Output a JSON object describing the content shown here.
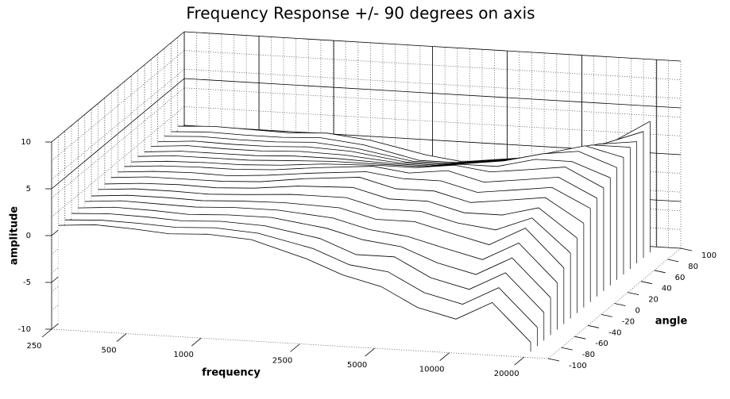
{
  "chart_data": {
    "type": "waterfall",
    "title": "Frequency Response +/- 90 degrees on axis",
    "x_label": "frequency",
    "y_label": "amplitude",
    "z_label": "angle",
    "x": [
      250,
      350,
      500,
      700,
      1000,
      1500,
      2500,
      3500,
      5000,
      7000,
      10000,
      14000,
      20000
    ],
    "angles": [
      -90,
      -80,
      -70,
      -60,
      -50,
      -40,
      -30,
      -20,
      -10,
      0,
      10,
      20,
      30,
      40,
      50,
      60,
      70,
      80,
      90
    ],
    "series": [
      {
        "values": [
          0.5,
          0.8,
          0.6,
          0.3,
          0.5,
          0.2,
          -1.5,
          -3,
          -4,
          -6,
          -7,
          -5,
          -9
        ]
      },
      {
        "values": [
          0.5,
          0.7,
          0.6,
          0.4,
          0.6,
          0.3,
          -1,
          -2.5,
          -3,
          -5,
          -6,
          -4,
          -8
        ]
      },
      {
        "values": [
          0.6,
          0.8,
          0.7,
          0.5,
          0.7,
          0.5,
          -0.5,
          -2,
          -2,
          -4,
          -5,
          -3,
          -7
        ]
      },
      {
        "values": [
          0.6,
          0.9,
          0.8,
          0.6,
          0.8,
          0.8,
          0,
          -1,
          -1.5,
          -3,
          -4,
          -2,
          -6
        ]
      },
      {
        "values": [
          0.7,
          1,
          0.9,
          0.8,
          1,
          1,
          0.5,
          -0.5,
          -1,
          -2,
          -3,
          -1,
          -5
        ]
      },
      {
        "values": [
          0.7,
          1,
          1,
          0.9,
          1.1,
          1.2,
          1,
          0,
          0,
          -1,
          -2,
          0,
          -4
        ]
      },
      {
        "values": [
          0.8,
          1.1,
          1.1,
          1,
          1.2,
          1.5,
          1.5,
          0.5,
          0.5,
          -0.5,
          -1,
          0.5,
          -3
        ]
      },
      {
        "values": [
          0.8,
          1.1,
          1.2,
          1.1,
          1.3,
          1.8,
          2,
          1,
          1,
          0,
          0,
          1,
          -2
        ]
      },
      {
        "values": [
          0.9,
          1.2,
          1.2,
          1.2,
          1.4,
          2,
          2.5,
          1.5,
          1.5,
          0.5,
          1,
          1.5,
          -1
        ]
      },
      {
        "values": [
          0.9,
          1.2,
          1.3,
          1.2,
          1.5,
          2,
          2.5,
          2,
          2,
          1,
          1.5,
          2,
          0
        ]
      },
      {
        "values": [
          0.9,
          1.2,
          1.3,
          1.3,
          1.5,
          2,
          2.5,
          2,
          2.5,
          1.5,
          2,
          2.5,
          0.5
        ]
      },
      {
        "values": [
          0.8,
          1.1,
          1.2,
          1.2,
          1.4,
          1.8,
          2,
          2,
          2.5,
          2,
          2.5,
          3,
          1
        ]
      },
      {
        "values": [
          0.8,
          1.1,
          1.1,
          1.1,
          1.3,
          1.5,
          1.5,
          1.5,
          2,
          2,
          3,
          3,
          1.5
        ]
      },
      {
        "values": [
          0.7,
          1,
          1,
          1,
          1.2,
          1.2,
          1,
          1,
          1.5,
          2,
          3,
          3.5,
          2
        ]
      },
      {
        "values": [
          0.7,
          1,
          0.9,
          0.9,
          1.1,
          1,
          0.5,
          0.5,
          1,
          1.5,
          2.5,
          3.5,
          2.5
        ]
      },
      {
        "values": [
          0.6,
          0.9,
          0.8,
          0.8,
          1,
          0.8,
          0,
          0,
          0.5,
          1,
          2,
          3,
          3
        ]
      },
      {
        "values": [
          0.6,
          0.8,
          0.7,
          0.7,
          0.9,
          0.5,
          -0.5,
          -0.5,
          0,
          0.5,
          1.5,
          2.5,
          3
        ]
      },
      {
        "values": [
          0.5,
          0.7,
          0.6,
          0.6,
          0.8,
          0.3,
          -1,
          -1,
          -0.5,
          0,
          1,
          2,
          3.5
        ]
      },
      {
        "values": [
          0.5,
          0.7,
          0.6,
          0.5,
          0.7,
          0.2,
          -1,
          -1.5,
          -1,
          -0.5,
          0.5,
          1.5,
          4
        ]
      }
    ],
    "color": "#000000",
    "log_x": true,
    "xlim": [
      250,
      25000
    ],
    "xticks": [
      250,
      500,
      1000,
      2500,
      5000,
      10000,
      20000
    ],
    "ylim": [
      -10,
      10
    ],
    "yticks": [
      -10,
      -5,
      0,
      5,
      10
    ],
    "zlim": [
      -100,
      100
    ],
    "zticks": [
      -100,
      -80,
      -60,
      -40,
      -20,
      0,
      20,
      40,
      60,
      80,
      100
    ],
    "grid": true
  }
}
